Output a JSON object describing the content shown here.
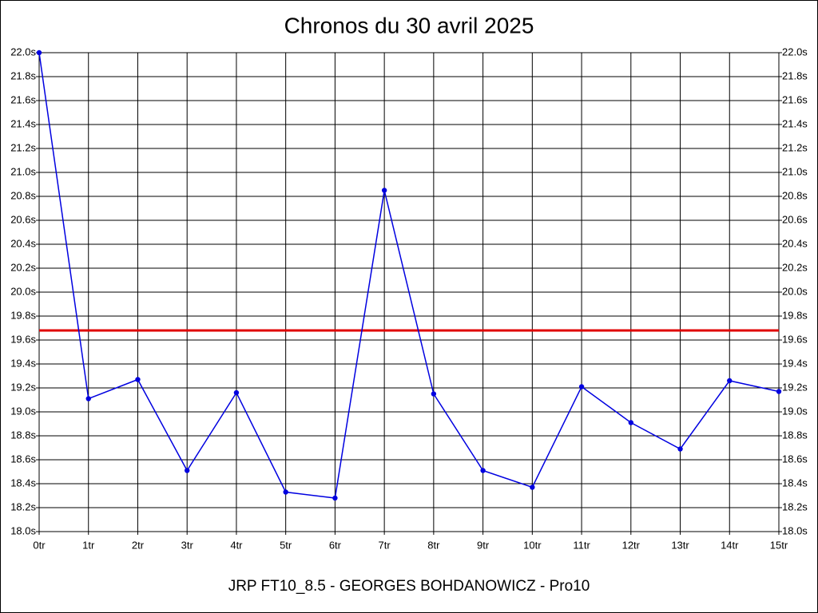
{
  "chart_data": {
    "type": "line",
    "title": "Chronos du 30 avril 2025",
    "xlabel": "JRP FT10_8.5 - GEORGES BOHDANOWICZ - Pro10",
    "categories": [
      "0tr",
      "1tr",
      "2tr",
      "3tr",
      "4tr",
      "5tr",
      "6tr",
      "7tr",
      "8tr",
      "9tr",
      "10tr",
      "11tr",
      "12tr",
      "13tr",
      "14tr",
      "15tr"
    ],
    "series": [
      {
        "color": "#0000e0",
        "values": [
          22.0,
          19.11,
          19.27,
          18.51,
          19.16,
          18.33,
          18.28,
          20.85,
          19.15,
          18.51,
          18.37,
          19.21,
          18.91,
          18.69,
          19.26,
          19.17
        ]
      }
    ],
    "reference_line": {
      "value": 19.68,
      "color": "#e00000"
    },
    "ylim": [
      18.0,
      22.0
    ],
    "yticks": [
      {
        "value": 18.0,
        "label": "18.0s"
      },
      {
        "value": 18.2,
        "label": "18.2s"
      },
      {
        "value": 18.4,
        "label": "18.4s"
      },
      {
        "value": 18.6,
        "label": "18.6s"
      },
      {
        "value": 18.8,
        "label": "18.8s"
      },
      {
        "value": 19.0,
        "label": "19.0s"
      },
      {
        "value": 19.2,
        "label": "19.2s"
      },
      {
        "value": 19.4,
        "label": "19.4s"
      },
      {
        "value": 19.6,
        "label": "19.6s"
      },
      {
        "value": 19.8,
        "label": "19.8s"
      },
      {
        "value": 20.0,
        "label": "20.0s"
      },
      {
        "value": 20.2,
        "label": "20.2s"
      },
      {
        "value": 20.4,
        "label": "20.4s"
      },
      {
        "value": 20.6,
        "label": "20.6s"
      },
      {
        "value": 20.8,
        "label": "20.8s"
      },
      {
        "value": 21.0,
        "label": "21.0s"
      },
      {
        "value": 21.2,
        "label": "21.2s"
      },
      {
        "value": 21.4,
        "label": "21.4s"
      },
      {
        "value": 21.6,
        "label": "21.6s"
      },
      {
        "value": 21.8,
        "label": "21.8s"
      },
      {
        "value": 22.0,
        "label": "22.0s"
      }
    ],
    "grid": true
  }
}
